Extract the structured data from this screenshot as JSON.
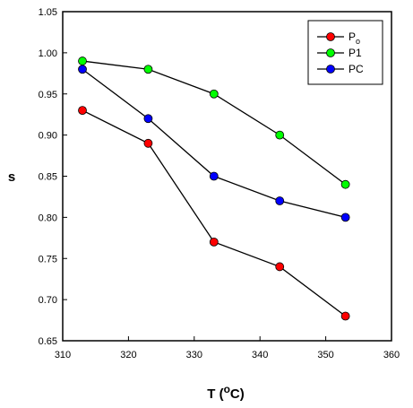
{
  "chart_data": {
    "type": "line",
    "xlabel": "T (",
    "xlabel_unit_sup": "o",
    "xlabel_unit_tail": "C)",
    "ylabel": "s",
    "xlim": [
      310,
      360
    ],
    "ylim": [
      0.65,
      1.05
    ],
    "x_ticks": [
      "310",
      "320",
      "330",
      "340",
      "350",
      "360"
    ],
    "y_ticks": [
      "0.65",
      "0.70",
      "0.75",
      "0.80",
      "0.85",
      "0.90",
      "0.95",
      "1.00",
      "1.05"
    ],
    "x": [
      313,
      323,
      333,
      343,
      353
    ],
    "series": [
      {
        "name": "P",
        "name_sub": "o",
        "color": "#ff0000",
        "values": [
          0.93,
          0.89,
          0.77,
          0.74,
          0.68
        ]
      },
      {
        "name": "P1",
        "color": "#00ff00",
        "values": [
          0.99,
          0.98,
          0.95,
          0.9,
          0.84
        ]
      },
      {
        "name": "PC",
        "color": "#0000ff",
        "values": [
          0.98,
          0.92,
          0.85,
          0.82,
          0.8
        ]
      }
    ],
    "grid": false,
    "legend_position": "top-right"
  }
}
